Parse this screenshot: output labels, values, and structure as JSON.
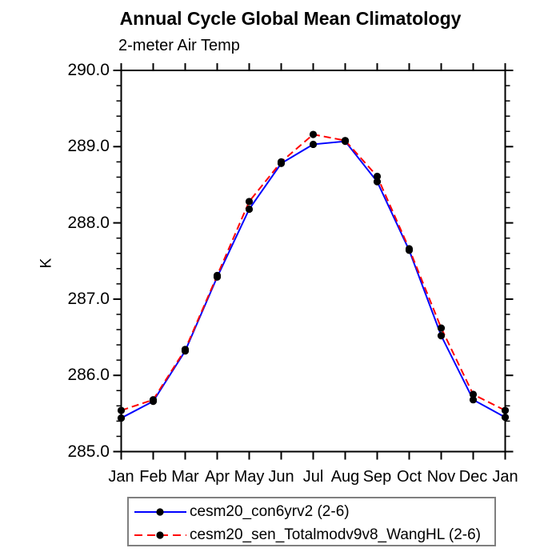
{
  "header": {
    "title": "Annual Cycle Global Mean Climatology",
    "subtitle": "2-meter Air Temp"
  },
  "chart_data": {
    "type": "line",
    "title": "Annual Cycle Global Mean Climatology",
    "subtitle": "2-meter Air Temp",
    "xlabel": "",
    "ylabel": "K",
    "x_categories": [
      "Jan",
      "Feb",
      "Mar",
      "Apr",
      "May",
      "Jun",
      "Jul",
      "Aug",
      "Sep",
      "Oct",
      "Nov",
      "Dec",
      "Jan"
    ],
    "ylim": [
      285.0,
      290.0
    ],
    "y_major_ticks": [
      "285.0",
      "286.0",
      "287.0",
      "288.0",
      "289.0",
      "290.0"
    ],
    "y_minor_tick_step": 0.2,
    "grid": false,
    "legend_position": "bottom-center",
    "frame_color": "#000000",
    "series": [
      {
        "name": "cesm20_con6yrv2 (2-6)",
        "color": "#0000ff",
        "line_style": "solid",
        "marker": "filled-circle",
        "marker_color": "#000000",
        "values": [
          285.44,
          285.66,
          286.32,
          287.29,
          288.18,
          288.78,
          289.03,
          289.07,
          288.54,
          287.64,
          286.52,
          285.68,
          285.45
        ]
      },
      {
        "name": "cesm20_sen_Totalmodv9v8_WangHL (2-6)",
        "color": "#ff0000",
        "line_style": "dashed",
        "marker": "filled-circle",
        "marker_color": "#000000",
        "values": [
          285.54,
          285.68,
          286.34,
          287.31,
          288.28,
          288.8,
          289.16,
          289.08,
          288.61,
          287.66,
          286.62,
          285.75,
          285.54
        ]
      }
    ]
  }
}
